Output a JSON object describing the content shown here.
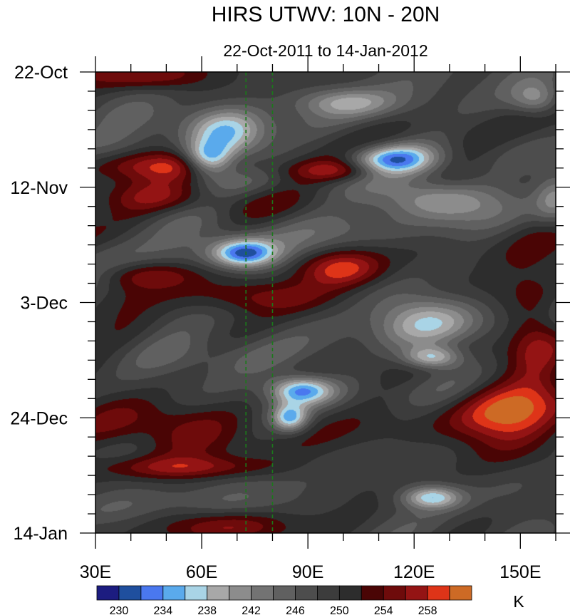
{
  "chart_data": {
    "type": "heatmap",
    "title": "HIRS UTWV: 10N - 20N",
    "subtitle": "22-Oct-2011 to 14-Jan-2012",
    "x_axis": {
      "range": [
        30,
        160
      ],
      "tick_values": [
        30,
        60,
        90,
        120,
        150
      ],
      "tick_labels": [
        "30E",
        "60E",
        "90E",
        "120E",
        "150E"
      ]
    },
    "y_axis": {
      "range_days": [
        0,
        84
      ],
      "direction": "time increases downward",
      "tick_days": [
        0,
        21,
        42,
        63,
        84
      ],
      "tick_labels": [
        "22-Oct",
        "12-Nov",
        "3-Dec",
        "24-Dec",
        "14-Jan"
      ]
    },
    "reference_lines": [
      {
        "longitude": 72.5,
        "style": "dashed",
        "color": "#1a7a1a"
      },
      {
        "longitude": 80,
        "style": "dashed",
        "color": "#1a7a1a"
      }
    ],
    "colorbar": {
      "unit_label": "K",
      "levels": [
        228,
        230,
        232,
        234,
        236,
        238,
        240,
        242,
        244,
        246,
        248,
        250,
        252,
        254,
        256,
        258,
        260
      ],
      "tick_values": [
        230,
        234,
        238,
        242,
        246,
        250,
        254,
        258
      ],
      "tick_labels": [
        "230",
        "234",
        "238",
        "242",
        "246",
        "250",
        "254",
        "258"
      ],
      "colors": [
        "#1c1c80",
        "#1f4f9e",
        "#4a78ef",
        "#5aaaec",
        "#a9d4e6",
        "#a8a8a8",
        "#8c8c8c",
        "#737373",
        "#606060",
        "#4d4d4d",
        "#3c3c3c",
        "#2d2d2d",
        "#4a0505",
        "#6e0b0b",
        "#941414",
        "#de3418",
        "#cd6a25"
      ]
    },
    "background_value": 249,
    "features": [
      {
        "lon": 100,
        "day": 5.5,
        "r_lon": 14,
        "r_day": 2.5,
        "value": 241
      },
      {
        "lon": 155,
        "day": 5,
        "r_lon": 7,
        "r_day": 3,
        "value": 241
      },
      {
        "lon": 67,
        "day": 11.5,
        "r_lon": 11,
        "r_day": 4.5,
        "value": 236
      },
      {
        "lon": 62,
        "day": 16,
        "r_lon": 7,
        "r_day": 3,
        "value": 233
      },
      {
        "lon": 114,
        "day": 16,
        "r_lon": 12,
        "r_day": 2.8,
        "value": 235
      },
      {
        "lon": 125,
        "day": 23,
        "r_lon": 16,
        "r_day": 3.5,
        "value": 238
      },
      {
        "lon": 72,
        "day": 33,
        "r_lon": 9,
        "r_day": 2.5,
        "value": 233
      },
      {
        "lon": 122,
        "day": 45,
        "r_lon": 14,
        "r_day": 5,
        "value": 237
      },
      {
        "lon": 125,
        "day": 52,
        "r_lon": 8,
        "r_day": 2,
        "value": 237
      },
      {
        "lon": 88,
        "day": 58,
        "r_lon": 9,
        "r_day": 2.5,
        "value": 234
      },
      {
        "lon": 85,
        "day": 63,
        "r_lon": 5,
        "r_day": 2.5,
        "value": 236
      },
      {
        "lon": 125,
        "day": 77.5,
        "r_lon": 8,
        "r_day": 2,
        "value": 237
      },
      {
        "lon": 160,
        "day": 23,
        "r_lon": 6,
        "r_day": 5,
        "value": 241
      },
      {
        "lon": 48,
        "day": 8,
        "r_lon": 30,
        "r_day": 3,
        "value": 247
      },
      {
        "lon": 58,
        "day": 28,
        "r_lon": 30,
        "r_day": 4,
        "value": 246
      },
      {
        "lon": 62,
        "day": 52,
        "r_lon": 30,
        "r_day": 3.5,
        "value": 247
      },
      {
        "lon": 72,
        "day": 79,
        "r_lon": 30,
        "r_day": 3,
        "value": 247
      },
      {
        "lon": 46,
        "day": 1,
        "r_lon": 18,
        "r_day": 2.5,
        "value": 255
      },
      {
        "lon": 52,
        "day": 17,
        "r_lon": 25,
        "r_day": 2.5,
        "value": 255
      },
      {
        "lon": 100,
        "day": 18,
        "r_lon": 15,
        "r_day": 2,
        "value": 257
      },
      {
        "lon": 52,
        "day": 23,
        "r_lon": 22,
        "r_day": 2.8,
        "value": 255
      },
      {
        "lon": 100,
        "day": 36,
        "r_lon": 12,
        "r_day": 3.5,
        "value": 258
      },
      {
        "lon": 45,
        "day": 37,
        "r_lon": 15,
        "r_day": 2.5,
        "value": 255
      },
      {
        "lon": 78,
        "day": 41,
        "r_lon": 22,
        "r_day": 3,
        "value": 255
      },
      {
        "lon": 46,
        "day": 64,
        "r_lon": 22,
        "r_day": 5,
        "value": 257
      },
      {
        "lon": 150,
        "day": 64,
        "r_lon": 15,
        "r_day": 8,
        "value": 259
      },
      {
        "lon": 155,
        "day": 50,
        "r_lon": 8,
        "r_day": 8,
        "value": 256
      },
      {
        "lon": 55,
        "day": 72,
        "r_lon": 25,
        "r_day": 2,
        "value": 255
      },
      {
        "lon": 68,
        "day": 83,
        "r_lon": 16,
        "r_day": 3,
        "value": 256
      }
    ]
  }
}
